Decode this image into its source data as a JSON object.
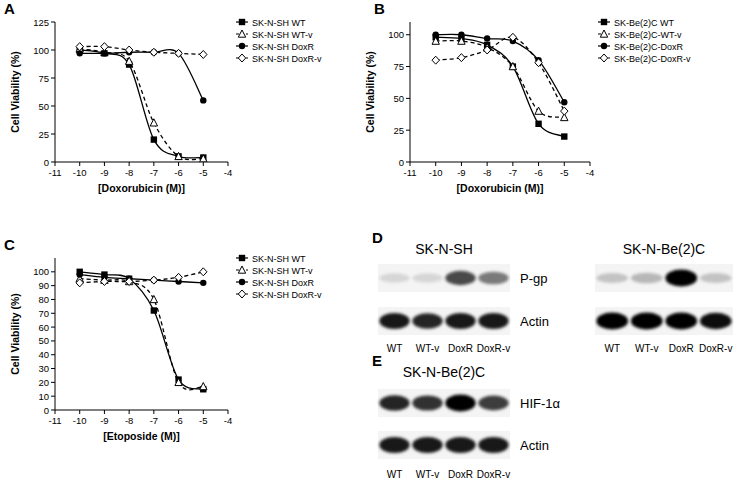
{
  "chart_data": [
    {
      "type": "line",
      "panel_label": "A",
      "x_label": "[Doxorubicin (M)]",
      "y_label": "Cell Viability (%)",
      "x": [
        -10,
        -9,
        -8,
        -7,
        -6,
        -5
      ],
      "xlim": [
        -11,
        -4
      ],
      "xticks": [
        -11,
        -10,
        -9,
        -8,
        -7,
        -6,
        -5,
        -4
      ],
      "ylim": [
        0,
        125
      ],
      "yticks": [
        0,
        25,
        50,
        75,
        100,
        125
      ],
      "legend": "right",
      "series": [
        {
          "name": "SK-N-SH WT",
          "color": "#000000",
          "marker": "square",
          "line_style": "solid",
          "values": [
            100,
            97,
            87,
            20,
            5,
            4
          ]
        },
        {
          "name": "SK-N-SH WT-v",
          "color": "#000000",
          "marker": "triangle-open",
          "line_style": "dashed",
          "values": [
            101,
            98,
            90,
            35,
            5,
            3
          ]
        },
        {
          "name": "SK-N-SH DoxR",
          "color": "#000000",
          "marker": "circle",
          "line_style": "solid",
          "values": [
            97,
            97,
            98,
            98,
            97,
            55
          ]
        },
        {
          "name": "SK-N-SH DoxR-v",
          "color": "#000000",
          "marker": "diamond-open",
          "line_style": "dashed",
          "values": [
            103,
            103,
            100,
            98,
            97,
            96
          ]
        }
      ]
    },
    {
      "type": "line",
      "panel_label": "B",
      "x_label": "[Doxorubicin (M)]",
      "y_label": "Cell Viability (%)",
      "x": [
        -10,
        -9,
        -8,
        -7,
        -6,
        -5
      ],
      "xlim": [
        -11,
        -4
      ],
      "xticks": [
        -11,
        -10,
        -9,
        -8,
        -7,
        -6,
        -5,
        -4
      ],
      "ylim": [
        0,
        110
      ],
      "yticks": [
        0,
        25,
        50,
        75,
        100
      ],
      "legend": "right",
      "series": [
        {
          "name": "SK-Be(2)C WT",
          "color": "#000000",
          "marker": "square",
          "line_style": "solid",
          "values": [
            98,
            97,
            92,
            75,
            30,
            20
          ]
        },
        {
          "name": "SK-Be(2)C-WT-v",
          "color": "#000000",
          "marker": "triangle-open",
          "line_style": "dashed",
          "values": [
            95,
            95,
            90,
            75,
            40,
            35
          ]
        },
        {
          "name": "SK-Be(2)C-DoxR",
          "color": "#000000",
          "marker": "circle",
          "line_style": "solid",
          "values": [
            100,
            100,
            97,
            95,
            80,
            47
          ]
        },
        {
          "name": "SK-Be(2)C-DoxR-v",
          "color": "#000000",
          "marker": "diamond-open",
          "line_style": "dashed",
          "values": [
            80,
            82,
            88,
            98,
            78,
            40
          ]
        }
      ]
    },
    {
      "type": "line",
      "panel_label": "C",
      "x_label": "[Etoposide (M)]",
      "y_label": "Cell Viability (%)",
      "x": [
        -10,
        -9,
        -8,
        -7,
        -6,
        -5
      ],
      "xlim": [
        -11,
        -4
      ],
      "xticks": [
        -11,
        -10,
        -9,
        -8,
        -7,
        -6,
        -5,
        -4
      ],
      "ylim": [
        0,
        110
      ],
      "yticks": [
        0,
        10,
        20,
        30,
        40,
        50,
        60,
        70,
        80,
        90,
        100
      ],
      "legend": "right",
      "series": [
        {
          "name": "SK-N-SH WT",
          "color": "#000000",
          "marker": "square",
          "line_style": "solid",
          "values": [
            100,
            98,
            95,
            72,
            22,
            15
          ]
        },
        {
          "name": "SK-N-SH WT-v",
          "color": "#000000",
          "marker": "triangle-open",
          "line_style": "dashed",
          "values": [
            95,
            94,
            93,
            80,
            20,
            17
          ]
        },
        {
          "name": "SK-N-SH DoxR",
          "color": "#000000",
          "marker": "circle",
          "line_style": "solid",
          "values": [
            98,
            96,
            95,
            94,
            93,
            92
          ]
        },
        {
          "name": "SK-N-SH DoxR-v",
          "color": "#000000",
          "marker": "diamond-open",
          "line_style": "dashed",
          "values": [
            92,
            93,
            93,
            94,
            96,
            100
          ]
        }
      ]
    },
    {
      "type": "blot",
      "panel_label": "D",
      "title": "SK-N-SH",
      "lanes": [
        "WT",
        "WT-v",
        "DoxR",
        "DoxR-v"
      ],
      "rows": [
        {
          "name": "P-gp",
          "values": [
            0.12,
            0.12,
            0.7,
            0.5
          ]
        },
        {
          "name": "Actin",
          "values": [
            0.9,
            0.85,
            0.9,
            0.9
          ]
        }
      ]
    },
    {
      "type": "blot",
      "title": "SK-N-Be(2)C",
      "lanes": [
        "WT",
        "WT-v",
        "DoxR",
        "DoxR-v"
      ],
      "rows": [
        {
          "values": [
            0.2,
            0.25,
            1.0,
            0.2
          ]
        },
        {
          "values": [
            1.0,
            1.0,
            1.0,
            0.95
          ]
        }
      ]
    },
    {
      "type": "blot",
      "panel_label": "E",
      "title": "SK-N-Be(2)C",
      "lanes": [
        "WT",
        "WT-v",
        "DoxR",
        "DoxR-v"
      ],
      "rows": [
        {
          "name": "HIF-1α",
          "values": [
            0.85,
            0.8,
            1.0,
            0.75
          ]
        },
        {
          "name": "Actin",
          "values": [
            0.9,
            0.9,
            0.9,
            0.9
          ]
        }
      ]
    }
  ]
}
